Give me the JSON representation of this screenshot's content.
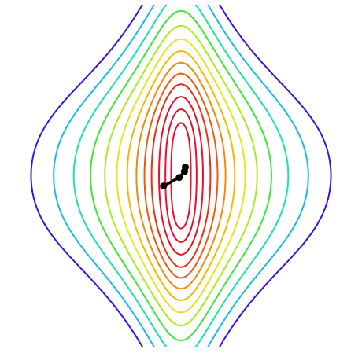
{
  "chart_data": {
    "type": "contour",
    "title": "",
    "xlabel": "",
    "ylabel": "",
    "axes_visible": false,
    "grid": false,
    "colormap": "hsv",
    "levels": [
      0.02,
      0.05,
      0.1,
      0.18,
      0.28,
      0.42,
      0.62,
      0.9,
      1.3,
      1.9,
      2.8,
      4.2,
      6.3
    ],
    "level_colors": [
      "#e8102a",
      "#e8102a",
      "#e8102a",
      "#ea2f14",
      "#f05a10",
      "#f08a0c",
      "#f5b800",
      "#e6e61a",
      "#a8ee1a",
      "#3ce63c",
      "#19e6a0",
      "#17bce8",
      "#3a12d8"
    ],
    "optimizer_path": [
      [
        0.05,
        0.1
      ],
      [
        0.04,
        0.05
      ],
      [
        -0.02,
        -0.02
      ],
      [
        -0.2,
        -0.12
      ]
    ],
    "path_color": "#000000"
  }
}
